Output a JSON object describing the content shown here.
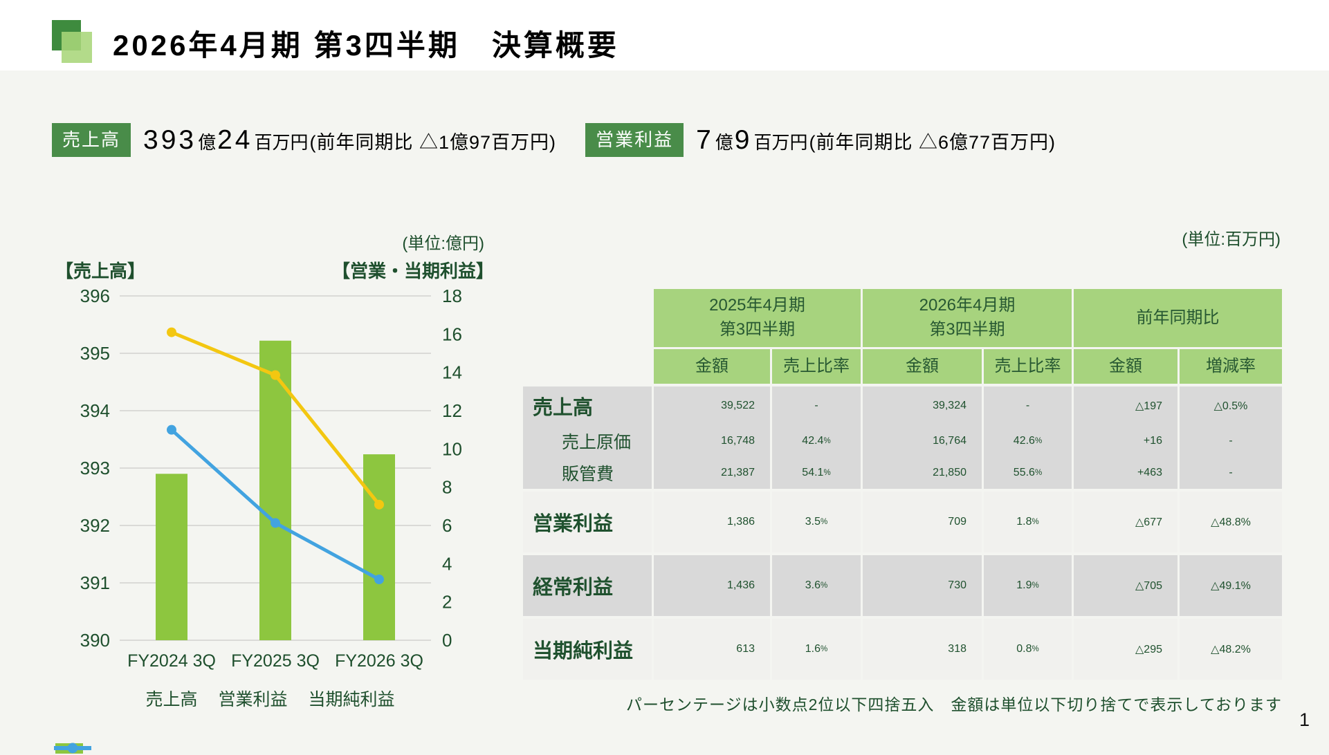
{
  "page": {
    "background": "#f4f5f1",
    "page_number": "1"
  },
  "header": {
    "title": "2026年4月期 第3四半期　決算概要",
    "logo_back_color": "#3e8b3e",
    "logo_front_color": "#a8d67a"
  },
  "metrics": [
    {
      "badge": "売上高",
      "value_parts": [
        {
          "text": "393",
          "kind": "num"
        },
        {
          "text": "億",
          "kind": "unit"
        },
        {
          "text": "24",
          "kind": "num"
        },
        {
          "text": "百万円",
          "kind": "unit"
        },
        {
          "text": " (前年同期比 △1億97百万円)",
          "kind": "paren"
        }
      ]
    },
    {
      "badge": "営業利益",
      "value_parts": [
        {
          "text": "7",
          "kind": "num"
        },
        {
          "text": "億",
          "kind": "unit"
        },
        {
          "text": "9",
          "kind": "num"
        },
        {
          "text": "百万円",
          "kind": "unit"
        },
        {
          "text": " (前年同期比 △6億77百万円)",
          "kind": "paren"
        }
      ]
    }
  ],
  "colors": {
    "badge_green": "#498c49",
    "table_header_green": "#a7d37e",
    "dark_green_text": "#1f512e",
    "row_gray": "#d9d9d9",
    "row_light": "#f1f1ee",
    "bar_green": "#8dc63f",
    "line_yellow": "#f3c711",
    "line_blue": "#42a3e0",
    "gridline": "#dadad7"
  },
  "chart_data": [
    {
      "type": "bar",
      "subtype": "bar+line combo, dual axis",
      "unit_note": "(単位:億円)",
      "categories": [
        "FY2024 3Q",
        "FY2025 3Q",
        "FY2026 3Q"
      ],
      "left_axis": {
        "label": "【売上高】",
        "min": 390,
        "max": 396,
        "step": 1
      },
      "right_axis": {
        "label": "【営業・当期利益】",
        "min": 0,
        "max": 18,
        "step": 2
      },
      "grid": true,
      "legend_position": "bottom",
      "series": [
        {
          "name": "売上高",
          "type": "bar",
          "axis": "left",
          "color": "#8dc63f",
          "values": [
            392.9,
            395.22,
            393.24
          ]
        },
        {
          "name": "営業利益",
          "type": "line",
          "axis": "right",
          "color": "#f3c711",
          "values": [
            16.1,
            13.86,
            7.09
          ]
        },
        {
          "name": "当期純利益",
          "type": "line",
          "axis": "right",
          "color": "#42a3e0",
          "values": [
            11.0,
            6.13,
            3.18
          ]
        }
      ]
    },
    {
      "type": "table",
      "unit_note": "(単位:百万円)",
      "column_groups": [
        "2025年4月期\n第3四半期",
        "2026年4月期\n第3四半期",
        "前年同期比"
      ],
      "sub_headers": [
        "金額",
        "売上比率",
        "金額",
        "売上比率",
        "金額",
        "増減率"
      ],
      "row_groups": [
        {
          "shade": "dark",
          "rows": [
            {
              "label": "売上高",
              "style": "main",
              "cells": [
                "39,522",
                "-",
                "39,324",
                "-",
                "△197",
                "△0.5%"
              ]
            },
            {
              "label": "売上原価",
              "style": "sub",
              "cells": [
                "16,748",
                "42.4%",
                "16,764",
                "42.6%",
                "+16",
                "-"
              ]
            },
            {
              "label": "販管費",
              "style": "sub",
              "cells": [
                "21,387",
                "54.1%",
                "21,850",
                "55.6%",
                "+463",
                "-"
              ]
            }
          ]
        },
        {
          "shade": "light",
          "rows": [
            {
              "label": "営業利益",
              "style": "profit",
              "cells": [
                "1,386",
                "3.5%",
                "709",
                "1.8%",
                "△677",
                "△48.8%"
              ]
            }
          ]
        },
        {
          "shade": "dark",
          "rows": [
            {
              "label": "経常利益",
              "style": "profit",
              "cells": [
                "1,436",
                "3.6%",
                "730",
                "1.9%",
                "△705",
                "△49.1%"
              ]
            }
          ]
        },
        {
          "shade": "light",
          "rows": [
            {
              "label": "当期純利益",
              "style": "profit",
              "cells": [
                "613",
                "1.6%",
                "318",
                "0.8%",
                "△295",
                "△48.2%"
              ]
            }
          ]
        }
      ],
      "footnote": "パーセンテージは小数点2位以下四捨五入　金額は単位以下切り捨てで表示しております"
    }
  ]
}
